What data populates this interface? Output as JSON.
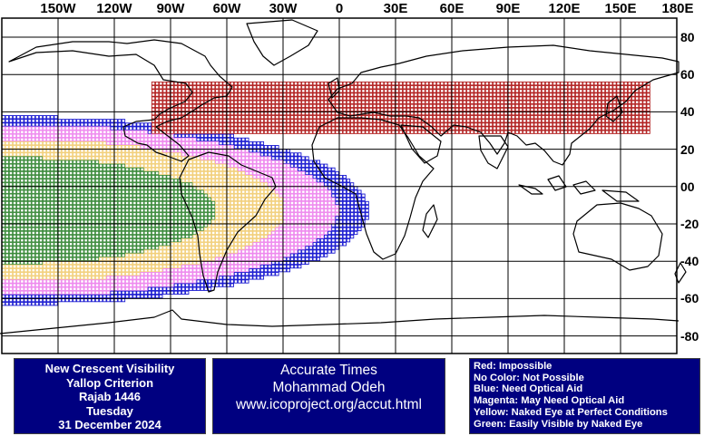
{
  "map": {
    "lon_labels": [
      "150W",
      "120W",
      "90W",
      "60W",
      "30W",
      "0",
      "30E",
      "60E",
      "90E",
      "120E",
      "150E",
      "180E"
    ],
    "lat_labels": [
      "80",
      "60",
      "40",
      "20",
      "00",
      "-20",
      "-40",
      "-60",
      "-80"
    ]
  },
  "info_left": {
    "line1": "New Crescent Visibility",
    "line2": "Yallop Criterion",
    "line3": "Rajab 1446",
    "line4": "Tuesday",
    "line5": "31 December 2024"
  },
  "info_middle": {
    "line1": "Accurate Times",
    "line2": "Mohammad Odeh",
    "line3": "www.icoproject.org/accut.html"
  },
  "legend": {
    "red": "Red: Impossible",
    "none": "No Color: Not Possible",
    "blue": "Blue: Need Optical Aid",
    "magenta": "Magenta: May Need Optical Aid",
    "yellow": "Yellow: Naked Eye at Perfect Conditions",
    "green": "Green: Easily Visible by Naked Eye"
  },
  "colors": {
    "red": "#b22222",
    "blue": "#1a1ad0",
    "magenta": "#ee88ee",
    "yellow": "#f2cf7a",
    "green": "#3a8a3a",
    "panel": "#000080"
  }
}
